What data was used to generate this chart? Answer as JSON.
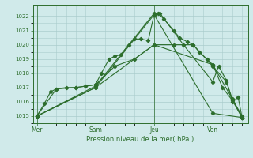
{
  "title": "Pression niveau de la mer( hPa )",
  "bg_color": "#d0eaea",
  "grid_color": "#aacccc",
  "line_color": "#2d6e2d",
  "ylim": [
    1014.5,
    1022.8
  ],
  "yticks": [
    1015,
    1016,
    1017,
    1018,
    1019,
    1020,
    1021,
    1022
  ],
  "xtick_labels": [
    "Mer",
    "Sam",
    "Jeu",
    "Ven"
  ],
  "xtick_positions": [
    0,
    3,
    6,
    9
  ],
  "xlim": [
    -0.2,
    10.8
  ],
  "lines": [
    [
      0.0,
      1015.0,
      0.4,
      1015.9,
      0.7,
      1016.7,
      1.0,
      1016.9,
      1.5,
      1017.0,
      2.0,
      1017.0,
      2.5,
      1017.1,
      3.0,
      1017.2,
      3.3,
      1018.0,
      3.7,
      1019.0,
      4.0,
      1019.2,
      4.3,
      1019.3,
      4.7,
      1020.0,
      5.0,
      1020.4,
      5.3,
      1020.4,
      5.7,
      1020.3,
      6.0,
      1022.1,
      6.2,
      1022.2,
      6.5,
      1021.8,
      7.0,
      1021.0,
      7.3,
      1020.5,
      7.7,
      1020.2,
      8.0,
      1020.0,
      8.3,
      1019.5,
      8.7,
      1019.0,
      9.0,
      1018.6,
      9.5,
      1017.0,
      10.0,
      1016.1,
      10.5,
      1014.9
    ],
    [
      0.0,
      1015.0,
      1.0,
      1016.9,
      2.0,
      1017.0,
      3.0,
      1017.2,
      4.0,
      1018.5,
      5.0,
      1019.0,
      6.0,
      1020.0,
      7.0,
      1020.0,
      8.0,
      1020.0,
      9.0,
      1018.5,
      9.7,
      1017.4,
      10.0,
      1016.2,
      10.5,
      1014.9
    ],
    [
      0.0,
      1015.0,
      3.0,
      1017.1,
      6.0,
      1022.2,
      6.3,
      1022.2,
      7.5,
      1020.0,
      9.0,
      1017.4,
      9.3,
      1018.5,
      9.7,
      1017.5,
      10.0,
      1016.0,
      10.3,
      1016.3,
      10.5,
      1014.9
    ],
    [
      0.0,
      1015.0,
      3.0,
      1017.0,
      6.0,
      1020.0,
      9.0,
      1018.6,
      10.5,
      1015.0
    ],
    [
      0.0,
      1015.0,
      3.0,
      1017.0,
      6.0,
      1022.1,
      9.0,
      1015.2,
      10.5,
      1014.9
    ]
  ]
}
